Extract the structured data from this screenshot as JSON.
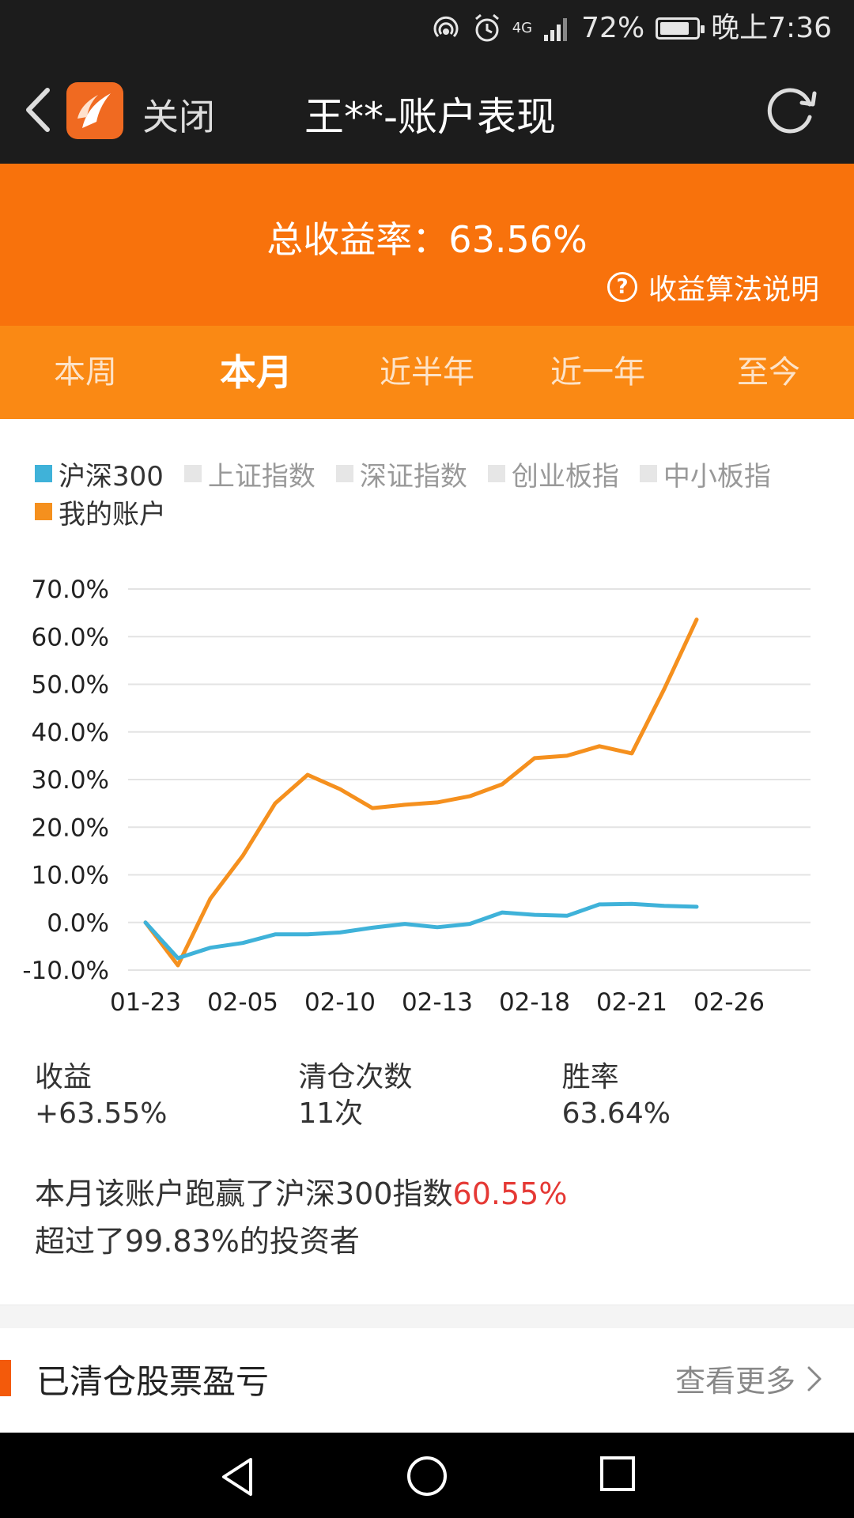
{
  "status": {
    "battery_percent": "72%",
    "time": "晚上7:36",
    "network": "4G"
  },
  "nav": {
    "close_label": "关闭",
    "title": "王**-账户表现"
  },
  "summary": {
    "total_rate": "总收益率：63.56%",
    "algo_label": "收益算法说明",
    "help_glyph": "?"
  },
  "tabs": [
    {
      "label": "本周"
    },
    {
      "label": "本月"
    },
    {
      "label": "近半年"
    },
    {
      "label": "近一年"
    },
    {
      "label": "至今"
    }
  ],
  "legend": [
    {
      "label": "沪深300",
      "color": "#3fb2d9",
      "active": true
    },
    {
      "label": "上证指数",
      "color": "#e6e6e6",
      "active": false
    },
    {
      "label": "深证指数",
      "color": "#e6e6e6",
      "active": false
    },
    {
      "label": "创业板指",
      "color": "#e6e6e6",
      "active": false
    },
    {
      "label": "中小板指",
      "color": "#e6e6e6",
      "active": false
    },
    {
      "label": "我的账户",
      "color": "#f5901e",
      "active": true
    }
  ],
  "chart_data": {
    "type": "line",
    "x_tick_labels": [
      "01-23",
      "02-05",
      "02-10",
      "02-13",
      "02-18",
      "02-21",
      "02-26"
    ],
    "y_tick_labels": [
      "70.0%",
      "60.0%",
      "50.0%",
      "40.0%",
      "30.0%",
      "20.0%",
      "10.0%",
      "0.0%",
      "-10.0%"
    ],
    "ylim": [
      -10,
      70
    ],
    "grid": true,
    "series": [
      {
        "name": "我的账户",
        "color": "#f5901e",
        "values": [
          0,
          -9,
          5,
          14,
          25,
          31,
          28,
          24,
          24.7,
          25.2,
          26.5,
          29,
          34.5,
          35,
          37,
          35.5,
          49,
          63.6
        ]
      },
      {
        "name": "沪深300",
        "color": "#3fb2d9",
        "values": [
          0,
          -7.5,
          -5.3,
          -4.3,
          -2.5,
          -2.5,
          -2.1,
          -1.1,
          -0.3,
          -1,
          -0.3,
          2.1,
          1.6,
          1.4,
          3.8,
          3.9,
          3.5,
          3.3
        ]
      }
    ]
  },
  "stats": [
    {
      "label": "收益",
      "value": "+63.55%"
    },
    {
      "label": "清仓次数",
      "value": "11次"
    },
    {
      "label": "胜率",
      "value": "63.64%"
    }
  ],
  "compare": {
    "line1_prefix": "本月该账户跑赢了沪深300指数",
    "line1_highlight": "60.55%",
    "line2": "超过了99.83%的投资者"
  },
  "section": {
    "title": "已清仓股票盈亏",
    "more_label": "查看更多"
  }
}
